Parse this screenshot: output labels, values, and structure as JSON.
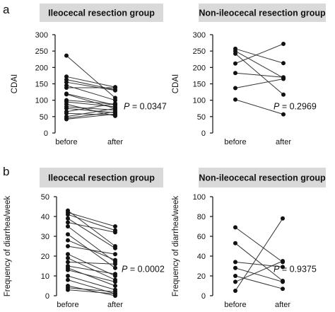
{
  "panel_labels": {
    "a": "a",
    "b": "b"
  },
  "chart_data": [
    {
      "type": "line",
      "panel": "a",
      "header": "Ileocecal resection group",
      "ylabel": "CDAI",
      "categories": [
        "before",
        "after"
      ],
      "ylim": [
        0,
        300
      ],
      "yticks": [
        0,
        50,
        100,
        150,
        200,
        250,
        300
      ],
      "p_label": "P",
      "p_value": " = 0.0347",
      "pairs": [
        [
          236,
          107
        ],
        [
          172,
          140
        ],
        [
          163,
          132
        ],
        [
          155,
          130
        ],
        [
          145,
          100
        ],
        [
          138,
          138
        ],
        [
          120,
          85
        ],
        [
          118,
          75
        ],
        [
          100,
          88
        ],
        [
          95,
          80
        ],
        [
          88,
          52
        ],
        [
          80,
          70
        ],
        [
          75,
          62
        ],
        [
          65,
          90
        ],
        [
          60,
          55
        ],
        [
          50,
          75
        ],
        [
          45,
          65
        ],
        [
          42,
          58
        ]
      ]
    },
    {
      "type": "line",
      "panel": "a",
      "header": "Non-ileocecal resection group",
      "ylabel": "CDAI",
      "categories": [
        "before",
        "after"
      ],
      "ylim": [
        0,
        300
      ],
      "yticks": [
        0,
        50,
        100,
        150,
        200,
        250,
        300
      ],
      "p_label": "P",
      "p_value": " = 0.2969",
      "pairs": [
        [
          257,
          213
        ],
        [
          250,
          168
        ],
        [
          242,
          117
        ],
        [
          212,
          272
        ],
        [
          183,
          170
        ],
        [
          137,
          165
        ],
        [
          102,
          57
        ]
      ]
    },
    {
      "type": "line",
      "panel": "b",
      "header": "Ileocecal resection group",
      "ylabel": "Frequency of diarrhea/week",
      "categories": [
        "before",
        "after"
      ],
      "ylim": [
        0,
        50
      ],
      "yticks": [
        0,
        10,
        20,
        30,
        40,
        50
      ],
      "p_label": "P",
      "p_value": " = 0.0002",
      "pairs": [
        [
          43,
          25
        ],
        [
          42,
          35
        ],
        [
          41,
          33
        ],
        [
          39,
          24
        ],
        [
          37,
          32
        ],
        [
          35,
          17
        ],
        [
          31,
          14
        ],
        [
          28,
          18
        ],
        [
          25,
          21
        ],
        [
          21,
          10
        ],
        [
          19,
          8
        ],
        [
          17,
          16
        ],
        [
          15,
          11
        ],
        [
          14,
          5
        ],
        [
          13,
          7
        ],
        [
          10,
          3
        ],
        [
          8,
          1
        ],
        [
          5,
          0
        ],
        [
          4,
          2
        ],
        [
          3,
          1
        ]
      ]
    },
    {
      "type": "line",
      "panel": "b",
      "header": "Non-ileocecal resection group",
      "ylabel": "Frequency of diarrhea/week",
      "categories": [
        "before",
        "after"
      ],
      "ylim": [
        0,
        100
      ],
      "yticks": [
        0,
        20,
        40,
        60,
        80,
        100
      ],
      "p_label": "P",
      "p_value": " = 0.9375",
      "pairs": [
        [
          69,
          34
        ],
        [
          53,
          15
        ],
        [
          34,
          29
        ],
        [
          28,
          14
        ],
        [
          20,
          7
        ],
        [
          14,
          35
        ],
        [
          5,
          78
        ]
      ]
    }
  ]
}
